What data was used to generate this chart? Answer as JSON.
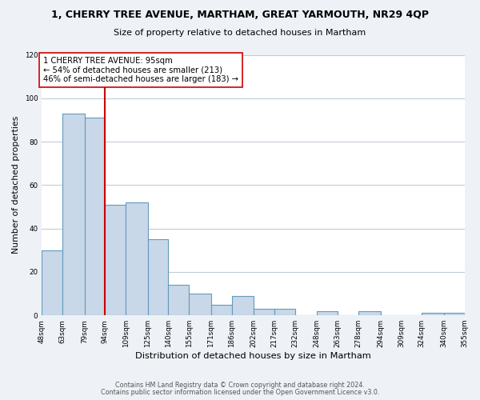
{
  "title": "1, CHERRY TREE AVENUE, MARTHAM, GREAT YARMOUTH, NR29 4QP",
  "subtitle": "Size of property relative to detached houses in Martham",
  "xlabel": "Distribution of detached houses by size in Martham",
  "ylabel": "Number of detached properties",
  "bar_heights": [
    30,
    93,
    91,
    51,
    52,
    35,
    14,
    10,
    5,
    9,
    3,
    3,
    0,
    2,
    0,
    2,
    0,
    0,
    1,
    1
  ],
  "bin_edges": [
    48,
    63,
    79,
    94,
    109,
    125,
    140,
    155,
    171,
    186,
    202,
    217,
    232,
    248,
    263,
    278,
    294,
    309,
    324,
    340,
    355
  ],
  "tick_labels": [
    "48sqm",
    "63sqm",
    "79sqm",
    "94sqm",
    "109sqm",
    "125sqm",
    "140sqm",
    "155sqm",
    "171sqm",
    "186sqm",
    "202sqm",
    "217sqm",
    "232sqm",
    "248sqm",
    "263sqm",
    "278sqm",
    "294sqm",
    "309sqm",
    "324sqm",
    "340sqm",
    "355sqm"
  ],
  "bar_color": "#c8d8e8",
  "bar_edge_color": "#6699bb",
  "vline_x": 94,
  "vline_color": "#cc0000",
  "annotation_box_text": "1 CHERRY TREE AVENUE: 95sqm\n← 54% of detached houses are smaller (213)\n46% of semi-detached houses are larger (183) →",
  "ylim": [
    0,
    120
  ],
  "yticks": [
    0,
    20,
    40,
    60,
    80,
    100,
    120
  ],
  "footer_line1": "Contains HM Land Registry data © Crown copyright and database right 2024.",
  "footer_line2": "Contains public sector information licensed under the Open Government Licence v3.0.",
  "bg_color": "#eef2f7",
  "plot_bg_color": "#ffffff",
  "grid_color": "#c0ccd8"
}
